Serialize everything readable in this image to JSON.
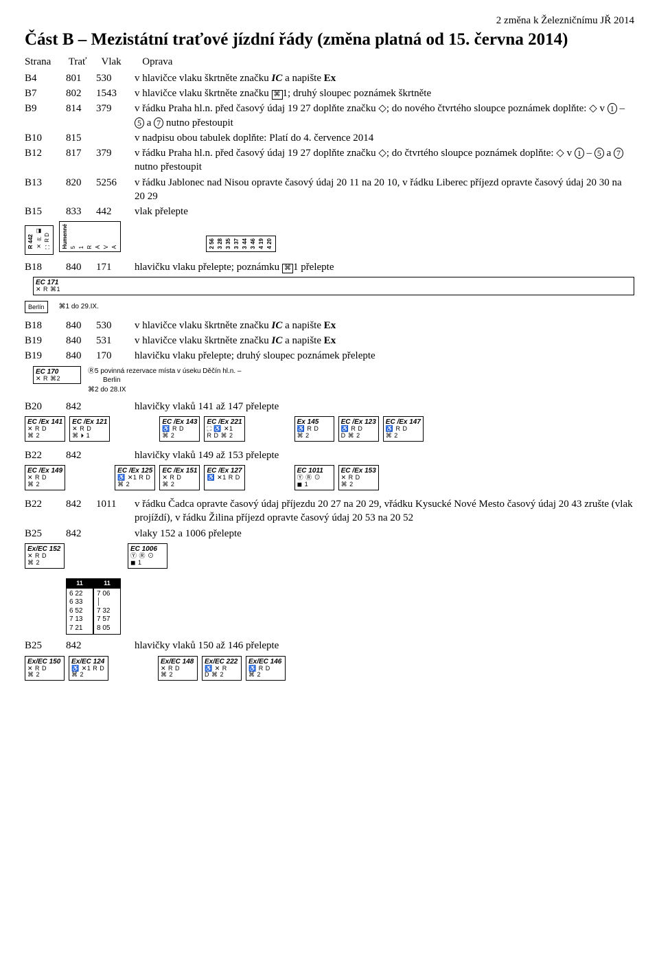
{
  "page_header": "2            změna k Železničnímu JŘ 2014",
  "section_title": "Část B – Mezistátní traťové jízdní řády (změna platná od 15. června 2014)",
  "col_head": {
    "c1": "Strana",
    "c2": "Trať",
    "c3": "Vlak",
    "c4": "Oprava"
  },
  "rows": [
    {
      "c1": "B4",
      "c2": "801",
      "c3": "530",
      "desc": "v hlavičce vlaku škrtněte značku <span class='itxt'>IC</span> a napište <b>Ex</b>"
    },
    {
      "c1": "B7",
      "c2": "802",
      "c3": "1543",
      "desc": "v hlavičce vlaku škrtněte značku <span class='box-char'>⌘</span>1; druhý sloupec poznámek škrtněte"
    },
    {
      "c1": "B9",
      "c2": "814",
      "c3": "379",
      "desc": "v řádku Praha hl.n. před časový údaj 19 27 doplňte značku ◇; do nového čtvrtého sloupce poznámek doplňte: ◇ v <span class='circled'>1</span> – <span class='circled'>5</span> a <span class='circled'>7</span> nutno přestoupit"
    },
    {
      "c1": "B10",
      "c2": "815",
      "c3": "",
      "desc": "v nadpisu obou tabulek doplňte: Platí do 4. července 2014"
    },
    {
      "c1": "B12",
      "c2": "817",
      "c3": "379",
      "desc": "v řádku Praha hl.n. před časový údaj 19 27 doplňte značku ◇; do čtvrtého sloupce poznámek doplňte: ◇ v <span class='circled'>1</span> – <span class='circled'>5</span> a <span class='circled'>7</span> nutno přestoupit"
    },
    {
      "c1": "B13",
      "c2": "820",
      "c3": "5256",
      "desc": "v řádku Jablonec nad Nisou opravte časový údaj 20 11 na 20 10, v řádku Liberec příjezd opravte časový údaj 20 30 na 20 29"
    },
    {
      "c1": "B15",
      "c2": "833",
      "c3": "442",
      "desc": "vlak přelepte"
    }
  ],
  "r442": {
    "left": [
      "R 442",
      "✕ ⛿ ◧",
      "⛶ R D"
    ],
    "mid_labels": [
      "Humenné",
      "5",
      "1",
      "R",
      "A",
      "V",
      "A"
    ],
    "right_vals": [
      "2 56",
      "3 28",
      "3 35",
      "3 37",
      "3 44",
      "3 46",
      "4 19",
      "4 20"
    ]
  },
  "row_b18_171": {
    "c1": "B18",
    "c2": "840",
    "c3": "171",
    "desc": "hlavičku vlaku přelepte; poznámku <span class='box-char'>⌘</span>1 přelepte"
  },
  "ec171_box": {
    "top": "EC 171",
    "line2": "✕ R ⌘1"
  },
  "berlin_box": {
    "left": "Berlín",
    "right": "⌘1 do 29.IX."
  },
  "rows2": [
    {
      "c1": "B18",
      "c2": "840",
      "c3": "530",
      "desc": "v hlavičce vlaku škrtněte značku <span class='itxt'>IC</span> a napište <b>Ex</b>"
    },
    {
      "c1": "B19",
      "c2": "840",
      "c3": "531",
      "desc": "v hlavičce vlaku škrtněte značku <span class='itxt'>IC</span> a napište <b>Ex</b>"
    },
    {
      "c1": "B19",
      "c2": "840",
      "c3": "170",
      "desc": "hlavičku vlaku přelepte; druhý sloupec poznámek přelepte"
    }
  ],
  "ec170_box": {
    "top": "EC 170",
    "line2": "✕ R ⌘2",
    "note1": "Ⓡ5  povinná rezervace místa v úseku Děčín hl.n. –",
    "note2": "Berlin",
    "note3": "⌘2 do 28.IX"
  },
  "row_b20": {
    "c1": "B20",
    "c2": "842",
    "c3": "",
    "desc": "hlavičky vlaků 141 až 147 přelepte"
  },
  "group141": [
    {
      "top": "EC /Ex 141",
      "l2": "✕ R D",
      "l3": "⌘ 2"
    },
    {
      "top": "EC /Ex 121",
      "l2": "✕ R D",
      "l3": "⌘ ⏵ 1"
    },
    {
      "top": "EC /Ex 143",
      "l2": "♿ R D",
      "l3": "⌘ 2",
      "spacer": true
    },
    {
      "top": "EC /Ex 221",
      "l2": "⛶ ♿ ✕1",
      "l3": "R D ⌘ 2"
    },
    {
      "top": "Ex 145",
      "l2": "♿ R D",
      "l3": "⌘ 2",
      "spacer": true
    },
    {
      "top": "EC /Ex 123",
      "l2": "♿ R D",
      "l3": "D ⌘ 2"
    },
    {
      "top": "EC /Ex 147",
      "l2": "♿ R D",
      "l3": "⌘ 2"
    }
  ],
  "row_b22": {
    "c1": "B22",
    "c2": "842",
    "c3": "",
    "desc": "hlavičky vlaků 149 až 153 přelepte"
  },
  "group149": [
    {
      "top": "EC /Ex 149",
      "l2": "✕ R D",
      "l3": "⌘ 2"
    },
    {
      "top": "EC /Ex 125",
      "l2": "♿ ✕1 R D",
      "l3": "⌘ 2",
      "spacer": true
    },
    {
      "top": "EC /Ex 151",
      "l2": "✕ R D",
      "l3": "⌘ 2"
    },
    {
      "top": "EC /Ex 127",
      "l2": "♿ ✕1 R D",
      "l3": ""
    },
    {
      "top": "EC 1011",
      "l2": "Ⓨ Ⓡ ⊙",
      "l3": "◼ 1",
      "spacer": true
    },
    {
      "top": "EC /Ex 153",
      "l2": "✕ R D",
      "l3": "⌘ 2"
    }
  ],
  "row_b22b": {
    "c1": "B22",
    "c2": "842",
    "c3": "1011",
    "desc": "v řádku Čadca opravte časový údaj příjezdu 20 27 na 20 29, vřádku Kysucké Nové Mesto časový údaj 20 43 zrušte (vlak projíždí), v řádku Žilina příjezd opravte časový údaj 20 53 na 20 52"
  },
  "row_b25": {
    "c1": "B25",
    "c2": "842",
    "c3": "",
    "desc": "vlaky 152 a 1006 přelepte"
  },
  "group152": {
    "left": {
      "top": "Ex/EC 152",
      "l2": "✕ R D",
      "l3": "⌘ 2"
    },
    "right": {
      "top": "EC 1006",
      "l2": "Ⓨ Ⓡ ⊙",
      "l3": "◼ 1"
    }
  },
  "time_table": {
    "left_hd": "11",
    "right_hd": "11",
    "left": [
      "6 22",
      "6 33",
      "6 52",
      "7 13",
      "7 21"
    ],
    "right": [
      "7 06",
      "│",
      "7 32",
      "7 57",
      "8 05"
    ]
  },
  "row_b25b": {
    "c1": "B25",
    "c2": "842",
    "c3": "",
    "desc": "hlavičky vlaků 150 až 146 přelepte"
  },
  "group150": [
    {
      "top": "Ex/EC 150",
      "l2": "✕ R D",
      "l3": "⌘ 2"
    },
    {
      "top": "Ex/EC 124",
      "l2": "♿ ✕1 R D",
      "l3": "⌘ 2"
    },
    {
      "top": "Ex/EC 148",
      "l2": "✕ R D",
      "l3": "⌘ 2",
      "spacer": true
    },
    {
      "top": "Ex/EC 222",
      "l2": "♿ ✕ R",
      "l3": "D ⌘ 2"
    },
    {
      "top": "Ex/EC 146",
      "l2": "♿ R D",
      "l3": "⌘ 2"
    }
  ]
}
